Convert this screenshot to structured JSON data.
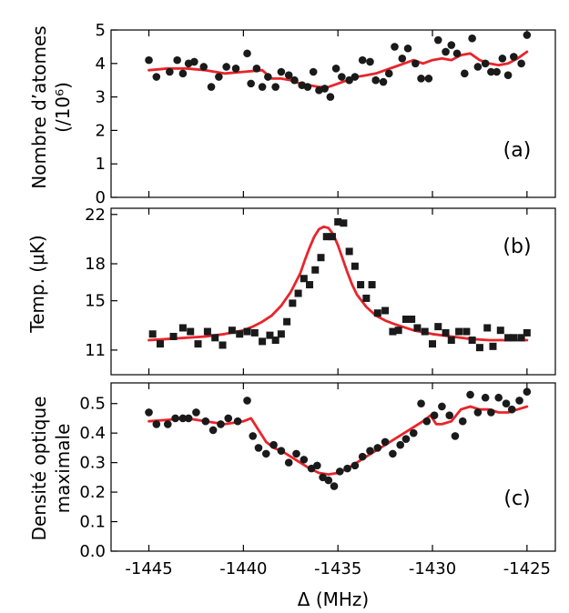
{
  "chart_data": [
    {
      "type": "scatter",
      "panel_label": "(a)",
      "ylabel_line1": "Nombre d’atomes",
      "ylabel_line2": "(/10⁶)",
      "xlabel": "",
      "xlim": [
        -1447,
        -1423.5
      ],
      "ylim": [
        0,
        5
      ],
      "yticks": [
        0,
        1,
        2,
        3,
        4,
        5
      ],
      "xticks": [
        -1445,
        -1440,
        -1435,
        -1430,
        -1425
      ],
      "grid": false,
      "marker": "circle",
      "series": [
        {
          "kind": "points",
          "x": [
            -1445,
            -1444.6,
            -1443.9,
            -1443.5,
            -1443.2,
            -1442.9,
            -1442.6,
            -1442.1,
            -1441.7,
            -1441.3,
            -1440.9,
            -1440.4,
            -1439.8,
            -1439.6,
            -1439.3,
            -1439,
            -1438.7,
            -1438.3,
            -1438,
            -1437.6,
            -1437.3,
            -1436.9,
            -1436.6,
            -1436.3,
            -1436,
            -1435.7,
            -1435.4,
            -1435.1,
            -1434.8,
            -1434.4,
            -1434.1,
            -1433.7,
            -1433.3,
            -1433,
            -1432.6,
            -1432.3,
            -1432,
            -1431.6,
            -1431.3,
            -1430.9,
            -1430.6,
            -1430.2,
            -1429.7,
            -1429.3,
            -1429,
            -1428.7,
            -1428.3,
            -1427.9,
            -1427.6,
            -1427.2,
            -1426.9,
            -1426.6,
            -1426.3,
            -1426,
            -1425.7,
            -1425.3,
            -1425
          ],
          "y": [
            4.1,
            3.6,
            3.75,
            4.1,
            3.7,
            4.0,
            4.05,
            3.9,
            3.3,
            3.6,
            3.9,
            3.85,
            4.3,
            3.4,
            3.85,
            3.3,
            3.6,
            3.3,
            3.75,
            3.65,
            3.5,
            3.35,
            3.3,
            3.75,
            3.2,
            3.25,
            3.0,
            3.85,
            3.6,
            3.5,
            3.6,
            4.1,
            4.05,
            3.5,
            3.45,
            3.7,
            4.5,
            4.15,
            4.45,
            4.0,
            3.55,
            3.55,
            4.7,
            4.35,
            4.55,
            4.3,
            3.7,
            4.75,
            3.9,
            4.0,
            3.75,
            3.75,
            4.15,
            3.65,
            4.2,
            4.0,
            4.85
          ]
        },
        {
          "kind": "line",
          "x": [
            -1445,
            -1444,
            -1443,
            -1442,
            -1441,
            -1440,
            -1439,
            -1438.5,
            -1438,
            -1437.5,
            -1437,
            -1436.5,
            -1436,
            -1435.5,
            -1435,
            -1434.5,
            -1434,
            -1433.5,
            -1433,
            -1432.5,
            -1432,
            -1431.5,
            -1431,
            -1430.5,
            -1430,
            -1429.5,
            -1429,
            -1428.5,
            -1428,
            -1427.5,
            -1427,
            -1426.5,
            -1426,
            -1425.5,
            -1425
          ],
          "y": [
            3.8,
            3.85,
            3.85,
            3.8,
            3.7,
            3.75,
            3.8,
            3.55,
            3.55,
            3.5,
            3.4,
            3.35,
            3.3,
            3.3,
            3.4,
            3.5,
            3.6,
            3.65,
            3.7,
            3.8,
            3.9,
            4.0,
            4.1,
            4.0,
            4.1,
            4.15,
            4.1,
            4.25,
            4.3,
            4.1,
            4.0,
            3.95,
            4.0,
            4.15,
            4.35
          ]
        }
      ]
    },
    {
      "type": "scatter",
      "panel_label": "(b)",
      "ylabel": "Temp. (μK)",
      "xlabel": "",
      "xlim": [
        -1447,
        -1423.5
      ],
      "ylim": [
        9,
        22.5
      ],
      "yticks": [
        11,
        15,
        18,
        22
      ],
      "xticks": [
        -1445,
        -1440,
        -1435,
        -1430,
        -1425
      ],
      "grid": false,
      "marker": "square",
      "series": [
        {
          "kind": "points",
          "x": [
            -1444.8,
            -1444.4,
            -1443.7,
            -1443.2,
            -1442.8,
            -1442.4,
            -1441.9,
            -1441.5,
            -1441.1,
            -1440.6,
            -1440.2,
            -1439.8,
            -1439.4,
            -1439,
            -1438.6,
            -1438.3,
            -1438,
            -1437.7,
            -1437.4,
            -1437.1,
            -1436.8,
            -1436.5,
            -1436.2,
            -1435.9,
            -1435.6,
            -1435.3,
            -1435,
            -1434.7,
            -1434.4,
            -1434.1,
            -1433.8,
            -1433.5,
            -1433.2,
            -1432.9,
            -1432.5,
            -1432.1,
            -1431.8,
            -1431.4,
            -1431.1,
            -1430.8,
            -1430.4,
            -1430,
            -1429.7,
            -1429.3,
            -1429,
            -1428.6,
            -1428.2,
            -1427.9,
            -1427.5,
            -1427.1,
            -1426.8,
            -1426.4,
            -1426,
            -1425.7,
            -1425.3,
            -1425
          ],
          "y": [
            12.3,
            11.5,
            12.1,
            12.8,
            12.5,
            11.5,
            12.5,
            12.0,
            11.4,
            12.6,
            12.3,
            12.5,
            12.4,
            11.7,
            12.2,
            11.8,
            12.3,
            13.3,
            14.8,
            15.6,
            16.8,
            16.3,
            17.5,
            18.5,
            20.2,
            20.2,
            21.4,
            21.3,
            19.0,
            17.8,
            16.3,
            15.2,
            16.3,
            14.0,
            14.2,
            12.5,
            12.6,
            13.5,
            13.5,
            12.8,
            12.5,
            11.5,
            12.9,
            12.4,
            11.8,
            12.5,
            12.5,
            11.8,
            11.2,
            12.8,
            11.3,
            12.6,
            12.0,
            12.0,
            12.0,
            12.4
          ]
        },
        {
          "kind": "line",
          "x": [
            -1445,
            -1444,
            -1443,
            -1442,
            -1441,
            -1440,
            -1439.5,
            -1439,
            -1438.5,
            -1438,
            -1437.5,
            -1437,
            -1436.75,
            -1436.5,
            -1436.25,
            -1436,
            -1435.75,
            -1435.5,
            -1435.25,
            -1435,
            -1434.75,
            -1434.5,
            -1434.25,
            -1434,
            -1433.5,
            -1433,
            -1432.5,
            -1432,
            -1431,
            -1430,
            -1429,
            -1428,
            -1427,
            -1426,
            -1425
          ],
          "y": [
            11.8,
            11.9,
            12.0,
            12.1,
            12.3,
            12.6,
            12.9,
            13.3,
            13.8,
            14.6,
            15.7,
            17.2,
            18.3,
            19.3,
            20.2,
            20.8,
            21.0,
            20.9,
            20.4,
            19.5,
            18.4,
            17.3,
            16.3,
            15.5,
            14.5,
            13.8,
            13.4,
            13.1,
            12.6,
            12.3,
            12.1,
            11.9,
            11.8,
            11.8,
            11.8
          ]
        }
      ]
    },
    {
      "type": "scatter",
      "panel_label": "(c)",
      "ylabel_line1": "Densité optique",
      "ylabel_line2": "maximale",
      "xlabel": "Δ (MHz)",
      "xlim": [
        -1447,
        -1423.5
      ],
      "ylim": [
        0,
        0.57
      ],
      "yticks": [
        0.0,
        0.1,
        0.2,
        0.3,
        0.4,
        0.5
      ],
      "xticks": [
        -1445,
        -1440,
        -1435,
        -1430,
        -1425
      ],
      "grid": false,
      "marker": "circle",
      "series": [
        {
          "kind": "points",
          "x": [
            -1445,
            -1444.6,
            -1444,
            -1443.6,
            -1443.2,
            -1442.9,
            -1442.5,
            -1442,
            -1441.6,
            -1441.2,
            -1440.8,
            -1440.3,
            -1439.8,
            -1439.5,
            -1439.2,
            -1438.8,
            -1438.4,
            -1438,
            -1437.6,
            -1437.2,
            -1436.8,
            -1436.4,
            -1436.1,
            -1435.8,
            -1435.5,
            -1435.2,
            -1434.9,
            -1434.5,
            -1434.1,
            -1433.7,
            -1433.3,
            -1432.9,
            -1432.5,
            -1432.1,
            -1431.7,
            -1431.4,
            -1431,
            -1430.6,
            -1430.3,
            -1429.9,
            -1429.5,
            -1429.1,
            -1428.8,
            -1428.4,
            -1428,
            -1427.6,
            -1427.2,
            -1426.9,
            -1426.5,
            -1426.1,
            -1425.8,
            -1425.4,
            -1425
          ],
          "y": [
            0.47,
            0.43,
            0.43,
            0.45,
            0.45,
            0.45,
            0.47,
            0.44,
            0.41,
            0.43,
            0.45,
            0.44,
            0.51,
            0.39,
            0.35,
            0.33,
            0.36,
            0.34,
            0.3,
            0.33,
            0.31,
            0.28,
            0.29,
            0.25,
            0.24,
            0.22,
            0.27,
            0.28,
            0.29,
            0.32,
            0.34,
            0.35,
            0.37,
            0.33,
            0.36,
            0.38,
            0.4,
            0.5,
            0.44,
            0.46,
            0.49,
            0.46,
            0.39,
            0.44,
            0.53,
            0.47,
            0.52,
            0.47,
            0.52,
            0.5,
            0.48,
            0.51,
            0.54
          ]
        },
        {
          "kind": "line",
          "x": [
            -1445,
            -1444,
            -1443,
            -1442,
            -1441,
            -1440,
            -1439.6,
            -1439.2,
            -1438.8,
            -1438.4,
            -1438,
            -1437.5,
            -1437,
            -1436.5,
            -1436,
            -1435.5,
            -1435,
            -1434.5,
            -1434,
            -1433.5,
            -1433,
            -1432.5,
            -1432,
            -1431.5,
            -1431,
            -1430.5,
            -1430.1,
            -1429.8,
            -1429.5,
            -1429,
            -1428.5,
            -1428,
            -1427.5,
            -1427,
            -1426.5,
            -1426,
            -1425.5,
            -1425
          ],
          "y": [
            0.44,
            0.445,
            0.45,
            0.44,
            0.43,
            0.44,
            0.45,
            0.41,
            0.37,
            0.35,
            0.34,
            0.32,
            0.3,
            0.28,
            0.265,
            0.26,
            0.265,
            0.28,
            0.3,
            0.32,
            0.34,
            0.36,
            0.38,
            0.4,
            0.42,
            0.44,
            0.46,
            0.43,
            0.43,
            0.44,
            0.48,
            0.49,
            0.48,
            0.48,
            0.47,
            0.47,
            0.48,
            0.49
          ]
        }
      ]
    }
  ],
  "colors": {
    "fit_line": "#e8252b",
    "points": "#1a1a1a",
    "axes": "#000000"
  }
}
